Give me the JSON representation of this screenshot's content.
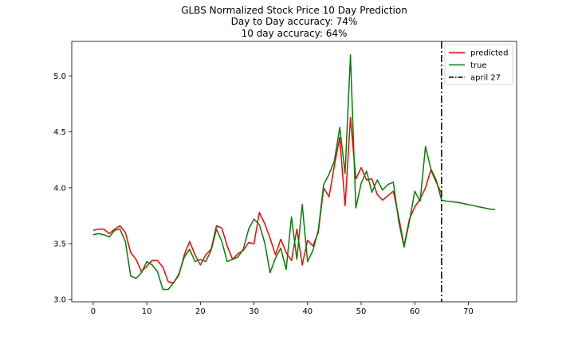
{
  "chart_data": {
    "type": "line",
    "title_lines": [
      "GLBS Normalized Stock Price 10 Day Prediction",
      "Day to Day accuracy: 74%",
      "10 day accuracy: 64%"
    ],
    "xlabel": "",
    "ylabel": "",
    "xlim": [
      -4,
      79
    ],
    "ylim": [
      2.98,
      5.31
    ],
    "x_ticks": [
      0,
      10,
      20,
      30,
      40,
      50,
      60,
      70
    ],
    "y_ticks": [
      3.0,
      3.5,
      4.0,
      4.5,
      5.0
    ],
    "x_tick_labels": [
      "0",
      "10",
      "20",
      "30",
      "40",
      "50",
      "60",
      "70"
    ],
    "y_tick_labels": [
      "3.0",
      "3.5",
      "4.0",
      "4.5",
      "5.0"
    ],
    "grid": false,
    "legend_position": "top-right",
    "series": [
      {
        "name": "predicted",
        "color": "#ff0000",
        "style": "solid",
        "x": [
          0,
          1,
          2,
          3,
          4,
          5,
          6,
          7,
          8,
          9,
          10,
          11,
          12,
          13,
          14,
          15,
          16,
          17,
          18,
          19,
          20,
          21,
          22,
          23,
          24,
          25,
          26,
          27,
          28,
          29,
          30,
          31,
          32,
          33,
          34,
          35,
          36,
          37,
          38,
          39,
          40,
          41,
          42,
          43,
          44,
          45,
          46,
          47,
          48,
          49,
          50,
          51,
          52,
          53,
          54,
          55,
          56,
          57,
          58,
          59,
          60,
          61,
          62,
          63,
          64,
          65
        ],
        "y": [
          3.62,
          3.63,
          3.63,
          3.59,
          3.63,
          3.66,
          3.6,
          3.42,
          3.36,
          3.25,
          3.3,
          3.35,
          3.35,
          3.29,
          3.16,
          3.15,
          3.22,
          3.4,
          3.52,
          3.4,
          3.31,
          3.4,
          3.45,
          3.66,
          3.64,
          3.48,
          3.36,
          3.41,
          3.44,
          3.51,
          3.5,
          3.78,
          3.68,
          3.55,
          3.4,
          3.54,
          3.42,
          3.35,
          3.63,
          3.31,
          3.53,
          3.48,
          3.6,
          4.0,
          3.92,
          4.2,
          4.45,
          3.84,
          4.63,
          4.08,
          4.18,
          4.07,
          4.08,
          3.94,
          3.89,
          3.93,
          3.97,
          3.74,
          3.48,
          3.72,
          3.83,
          3.9,
          4.0,
          4.16,
          4.05,
          3.95
        ]
      },
      {
        "name": "true",
        "color": "#008000",
        "style": "solid",
        "x": [
          0,
          1,
          2,
          3,
          4,
          5,
          6,
          7,
          8,
          9,
          10,
          11,
          12,
          13,
          14,
          15,
          16,
          17,
          18,
          19,
          20,
          21,
          22,
          23,
          24,
          25,
          26,
          27,
          28,
          29,
          30,
          31,
          32,
          33,
          34,
          35,
          36,
          37,
          38,
          39,
          40,
          41,
          42,
          43,
          44,
          45,
          46,
          47,
          48,
          49,
          50,
          51,
          52,
          53,
          54,
          55,
          56,
          57,
          58,
          59,
          60,
          61,
          62,
          63,
          64,
          65,
          66,
          67,
          68,
          69,
          70,
          71,
          72,
          73,
          74,
          75
        ],
        "y": [
          3.58,
          3.59,
          3.58,
          3.56,
          3.62,
          3.63,
          3.52,
          3.21,
          3.19,
          3.24,
          3.34,
          3.31,
          3.25,
          3.09,
          3.09,
          3.15,
          3.23,
          3.38,
          3.45,
          3.34,
          3.36,
          3.34,
          3.44,
          3.63,
          3.52,
          3.34,
          3.36,
          3.38,
          3.45,
          3.63,
          3.72,
          3.67,
          3.51,
          3.24,
          3.37,
          3.46,
          3.27,
          3.74,
          3.36,
          3.85,
          3.34,
          3.44,
          3.62,
          4.03,
          4.12,
          4.24,
          4.54,
          4.13,
          5.19,
          3.82,
          4.04,
          4.15,
          3.96,
          4.07,
          3.98,
          4.03,
          4.05,
          3.7,
          3.47,
          3.7,
          3.97,
          3.88,
          4.37,
          4.17,
          4.07,
          3.89,
          3.88,
          3.875,
          3.87,
          3.86,
          3.85,
          3.84,
          3.83,
          3.82,
          3.81,
          3.805
        ]
      }
    ],
    "vline": {
      "name": "april 27",
      "x": 65,
      "color": "#000000",
      "style": "dashdot"
    }
  }
}
